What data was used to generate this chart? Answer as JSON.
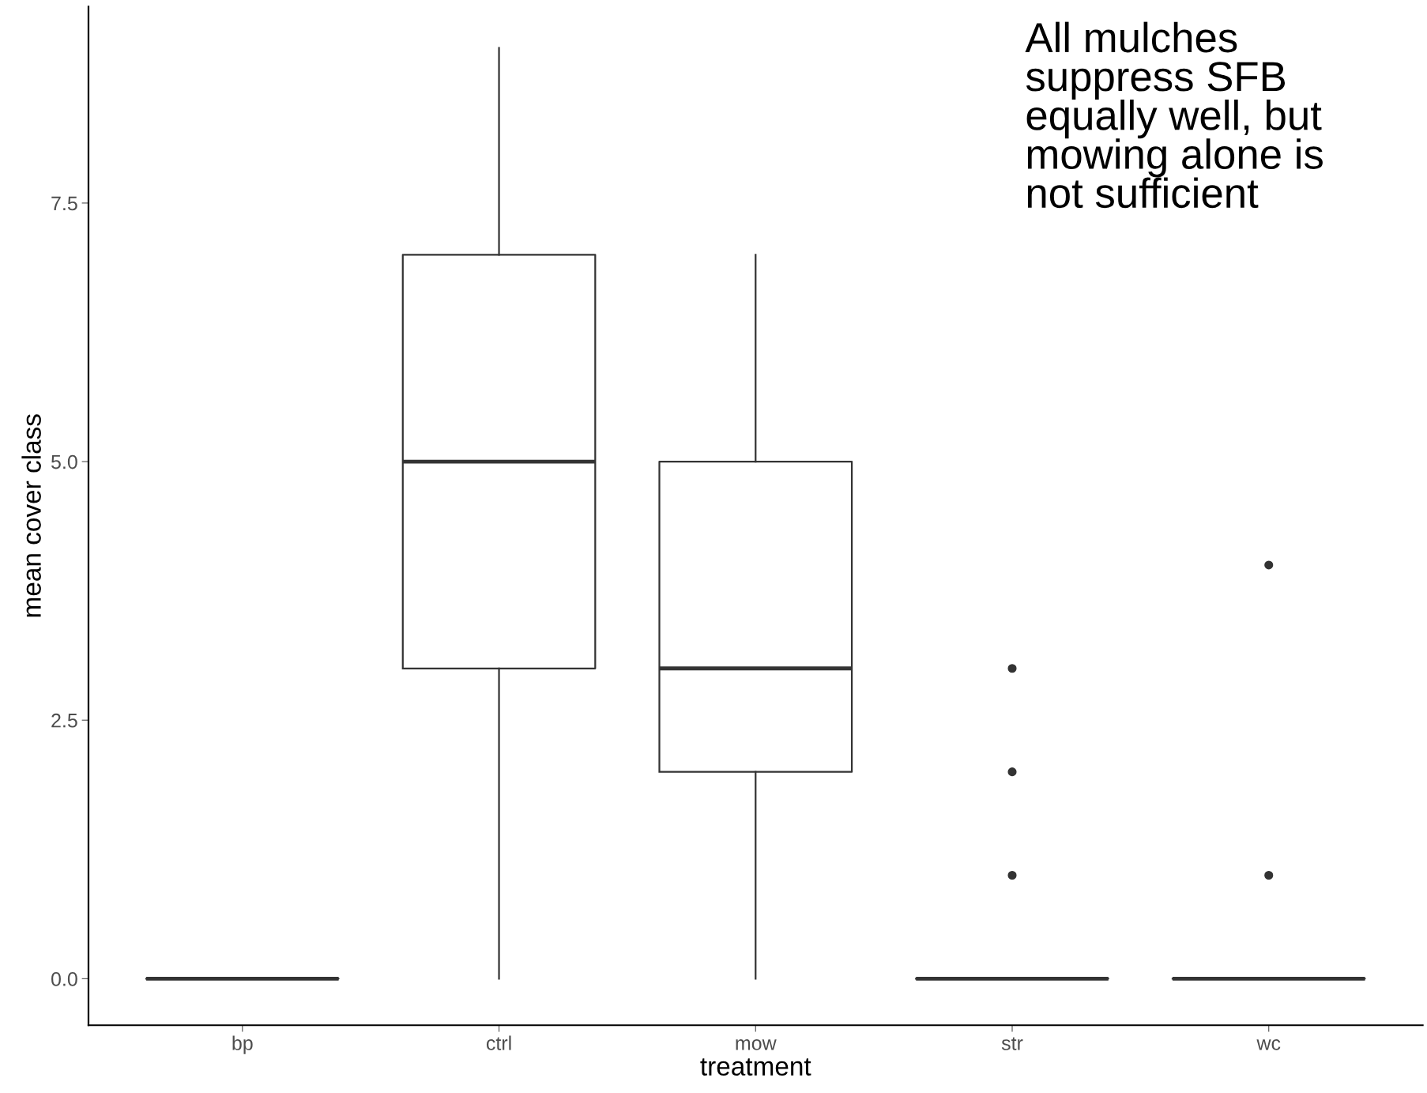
{
  "chart_data": {
    "type": "box",
    "xlabel": "treatment",
    "ylabel": "mean cover class",
    "categories": [
      "bp",
      "ctrl",
      "mow",
      "str",
      "wc"
    ],
    "boxes": [
      {
        "low": 0,
        "q1": 0,
        "median": 0,
        "q3": 0,
        "high": 0
      },
      {
        "low": 0,
        "q1": 3,
        "median": 5,
        "q3": 7,
        "high": 9
      },
      {
        "low": 0,
        "q1": 2,
        "median": 3,
        "q3": 5,
        "high": 7
      },
      {
        "low": 0,
        "q1": 0,
        "median": 0,
        "q3": 0,
        "high": 0,
        "outliers": [
          1,
          2,
          3
        ]
      },
      {
        "low": 0,
        "q1": 0,
        "median": 0,
        "q3": 0,
        "high": 0,
        "outliers": [
          1,
          4
        ]
      }
    ],
    "ylim": [
      -0.45,
      9.4
    ],
    "yticks": [
      {
        "value": 0,
        "label": "0.0"
      },
      {
        "value": 2.5,
        "label": "2.5"
      },
      {
        "value": 5,
        "label": "5.0"
      },
      {
        "value": 7.5,
        "label": "7.5"
      }
    ],
    "annotations": [
      "All mulches\nsuppress SFB\nequally well, but\nmowing alone is\nnot sufficient"
    ],
    "grid": false
  }
}
